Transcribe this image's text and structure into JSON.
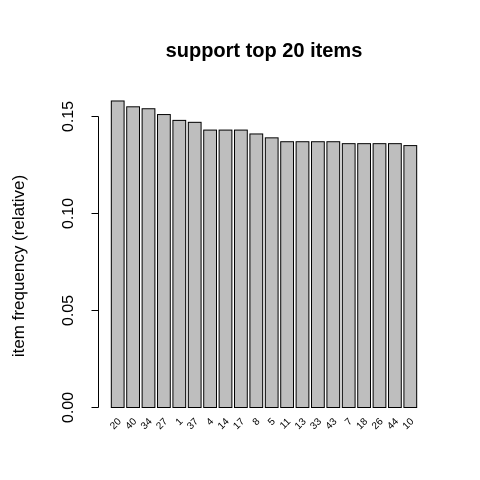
{
  "chart_data": {
    "type": "bar",
    "title": "support top 20 items",
    "xlabel": "",
    "ylabel": "item frequency (relative)",
    "ylim": [
      0,
      0.16
    ],
    "yticks": [
      0.0,
      0.05,
      0.1,
      0.15
    ],
    "ytick_labels": [
      "0.00",
      "0.05",
      "0.10",
      "0.15"
    ],
    "categories": [
      "20",
      "40",
      "34",
      "27",
      "1",
      "37",
      "4",
      "14",
      "17",
      "8",
      "5",
      "11",
      "13",
      "33",
      "43",
      "7",
      "18",
      "26",
      "44",
      "10"
    ],
    "values": [
      0.158,
      0.155,
      0.154,
      0.151,
      0.148,
      0.147,
      0.143,
      0.143,
      0.143,
      0.141,
      0.139,
      0.137,
      0.137,
      0.137,
      0.137,
      0.136,
      0.136,
      0.136,
      0.136,
      0.135
    ],
    "bar_color": "#bebebe",
    "grid": false,
    "legend": "none"
  }
}
